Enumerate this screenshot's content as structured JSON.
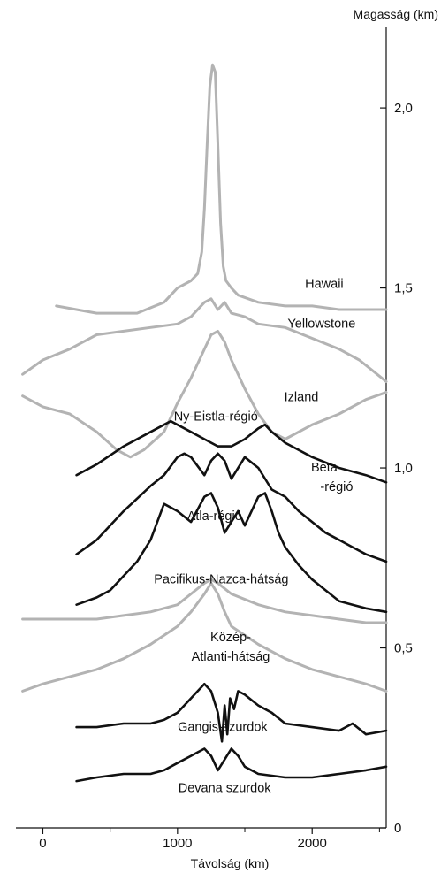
{
  "chart_data": {
    "type": "line",
    "xlabel": "Távolság (km)",
    "ylabel": "Magasság (km)",
    "xlim": [
      -200,
      2550
    ],
    "ylim": [
      0,
      2.3
    ],
    "x_ticks": [
      {
        "value": 0,
        "label": "0"
      },
      {
        "value": 1000,
        "label": "1000"
      },
      {
        "value": 2000,
        "label": "2000"
      }
    ],
    "y_ticks": [
      {
        "value": 0,
        "label": "0"
      },
      {
        "value": 0.5,
        "label": "0,5"
      },
      {
        "value": 1.0,
        "label": "1,0"
      },
      {
        "value": 1.5,
        "label": "1,5"
      },
      {
        "value": 2.0,
        "label": "2,0"
      }
    ],
    "grid": false,
    "legend": "none",
    "colors": {
      "earth": "#b3b3b3",
      "venus": "#111111"
    },
    "series": [
      {
        "name": "Hawaii",
        "group": "earth",
        "label_at": [
          2090,
          1.5
        ],
        "x": [
          100,
          400,
          700,
          900,
          950,
          1000,
          1050,
          1100,
          1150,
          1180,
          1200,
          1220,
          1240,
          1260,
          1280,
          1300,
          1320,
          1340,
          1360,
          1400,
          1450,
          1600,
          1800,
          2000,
          2200,
          2400,
          2550
        ],
        "y": [
          1.45,
          1.43,
          1.43,
          1.46,
          1.48,
          1.5,
          1.51,
          1.52,
          1.54,
          1.6,
          1.72,
          1.9,
          2.06,
          2.12,
          2.1,
          1.9,
          1.68,
          1.56,
          1.52,
          1.5,
          1.48,
          1.46,
          1.45,
          1.45,
          1.44,
          1.44,
          1.44
        ]
      },
      {
        "name": "Yellowstone",
        "group": "earth",
        "label_at": [
          2070,
          1.389
        ],
        "x": [
          -150,
          0,
          200,
          400,
          600,
          800,
          1000,
          1100,
          1200,
          1250,
          1300,
          1350,
          1400,
          1500,
          1600,
          1800,
          2000,
          2200,
          2350,
          2450,
          2550
        ],
        "y": [
          1.26,
          1.3,
          1.33,
          1.37,
          1.38,
          1.39,
          1.4,
          1.42,
          1.46,
          1.47,
          1.44,
          1.46,
          1.43,
          1.42,
          1.4,
          1.39,
          1.36,
          1.33,
          1.3,
          1.27,
          1.24
        ]
      },
      {
        "name": "Izland",
        "group": "earth",
        "label_at": [
          1920,
          1.186
        ],
        "x": [
          -150,
          0,
          200,
          400,
          550,
          650,
          750,
          900,
          1000,
          1100,
          1200,
          1250,
          1300,
          1350,
          1400,
          1500,
          1600,
          1700,
          1800,
          2000,
          2200,
          2400,
          2550
        ],
        "y": [
          1.2,
          1.17,
          1.15,
          1.1,
          1.05,
          1.03,
          1.05,
          1.1,
          1.18,
          1.25,
          1.33,
          1.37,
          1.38,
          1.35,
          1.3,
          1.22,
          1.15,
          1.1,
          1.08,
          1.12,
          1.15,
          1.19,
          1.21
        ]
      },
      {
        "name": "Ny-Eistla-régió",
        "group": "venus",
        "label_at": [
          1285,
          1.131
        ],
        "x": [
          250,
          400,
          600,
          800,
          900,
          950,
          1000,
          1100,
          1200,
          1300,
          1400,
          1500,
          1600,
          1650,
          1700,
          1800,
          2000,
          2200,
          2400,
          2550
        ],
        "y": [
          0.98,
          1.01,
          1.06,
          1.1,
          1.12,
          1.13,
          1.12,
          1.1,
          1.08,
          1.06,
          1.06,
          1.08,
          1.11,
          1.12,
          1.1,
          1.07,
          1.03,
          1.0,
          0.98,
          0.96
        ]
      },
      {
        "name": "Beta -régió",
        "group": "venus",
        "label_at": [
          2090,
          0.99
        ],
        "x": [
          250,
          400,
          600,
          800,
          900,
          1000,
          1050,
          1100,
          1200,
          1250,
          1300,
          1350,
          1400,
          1500,
          1600,
          1700,
          1800,
          1900,
          2000,
          2100,
          2200,
          2300,
          2400,
          2550
        ],
        "y": [
          0.76,
          0.8,
          0.88,
          0.95,
          0.98,
          1.03,
          1.04,
          1.03,
          0.98,
          1.02,
          1.04,
          1.02,
          0.97,
          1.03,
          1.0,
          0.94,
          0.92,
          0.88,
          0.85,
          0.82,
          0.8,
          0.78,
          0.76,
          0.74
        ]
      },
      {
        "name": "Atla-régió",
        "group": "venus",
        "label_at": [
          1275,
          0.855
        ],
        "x": [
          250,
          400,
          500,
          600,
          700,
          800,
          900,
          1000,
          1100,
          1200,
          1250,
          1300,
          1350,
          1400,
          1450,
          1500,
          1550,
          1600,
          1650,
          1700,
          1750,
          1800,
          1900,
          2000,
          2100,
          2200,
          2300,
          2400,
          2550
        ],
        "y": [
          0.62,
          0.64,
          0.66,
          0.7,
          0.74,
          0.8,
          0.9,
          0.88,
          0.85,
          0.92,
          0.93,
          0.89,
          0.82,
          0.85,
          0.88,
          0.84,
          0.88,
          0.92,
          0.93,
          0.88,
          0.82,
          0.78,
          0.73,
          0.69,
          0.66,
          0.63,
          0.62,
          0.61,
          0.6
        ]
      },
      {
        "name": "Pacifikus-Nazca-hátság",
        "group": "earth",
        "label_at": [
          1325,
          0.679
        ],
        "x": [
          -150,
          0,
          200,
          400,
          600,
          800,
          1000,
          1100,
          1200,
          1250,
          1300,
          1400,
          1600,
          1800,
          2000,
          2200,
          2400,
          2550
        ],
        "y": [
          0.58,
          0.58,
          0.58,
          0.58,
          0.59,
          0.6,
          0.62,
          0.65,
          0.68,
          0.69,
          0.68,
          0.65,
          0.62,
          0.6,
          0.59,
          0.58,
          0.57,
          0.57
        ]
      },
      {
        "name": "Közép- Atlanti-hátság",
        "group": "earth",
        "label_at": [
          1395,
          0.518
        ],
        "x": [
          -150,
          0,
          200,
          400,
          600,
          800,
          1000,
          1100,
          1200,
          1250,
          1300,
          1350,
          1400,
          1600,
          1800,
          2000,
          2200,
          2400,
          2550
        ],
        "y": [
          0.38,
          0.4,
          0.42,
          0.44,
          0.47,
          0.51,
          0.56,
          0.6,
          0.65,
          0.68,
          0.65,
          0.6,
          0.56,
          0.51,
          0.47,
          0.44,
          0.42,
          0.4,
          0.38
        ]
      },
      {
        "name": "Gangis-szurdok",
        "group": "venus",
        "label_at": [
          1335,
          0.269
        ],
        "x": [
          250,
          400,
          600,
          800,
          900,
          1000,
          1050,
          1100,
          1150,
          1200,
          1250,
          1300,
          1330,
          1350,
          1370,
          1390,
          1420,
          1450,
          1500,
          1600,
          1700,
          1800,
          2000,
          2200,
          2300,
          2400,
          2550
        ],
        "y": [
          0.28,
          0.28,
          0.29,
          0.29,
          0.3,
          0.32,
          0.34,
          0.36,
          0.38,
          0.4,
          0.38,
          0.32,
          0.24,
          0.34,
          0.26,
          0.36,
          0.33,
          0.38,
          0.37,
          0.34,
          0.32,
          0.29,
          0.28,
          0.27,
          0.29,
          0.26,
          0.27
        ]
      },
      {
        "name": "Devana szurdok",
        "group": "venus",
        "label_at": [
          1350,
          0.1
        ],
        "x": [
          250,
          400,
          600,
          800,
          900,
          1000,
          1100,
          1150,
          1200,
          1250,
          1300,
          1350,
          1400,
          1450,
          1500,
          1600,
          1800,
          2000,
          2200,
          2400,
          2550
        ],
        "y": [
          0.13,
          0.14,
          0.15,
          0.15,
          0.16,
          0.18,
          0.2,
          0.21,
          0.22,
          0.2,
          0.16,
          0.19,
          0.22,
          0.2,
          0.17,
          0.15,
          0.14,
          0.14,
          0.15,
          0.16,
          0.17
        ]
      }
    ]
  }
}
